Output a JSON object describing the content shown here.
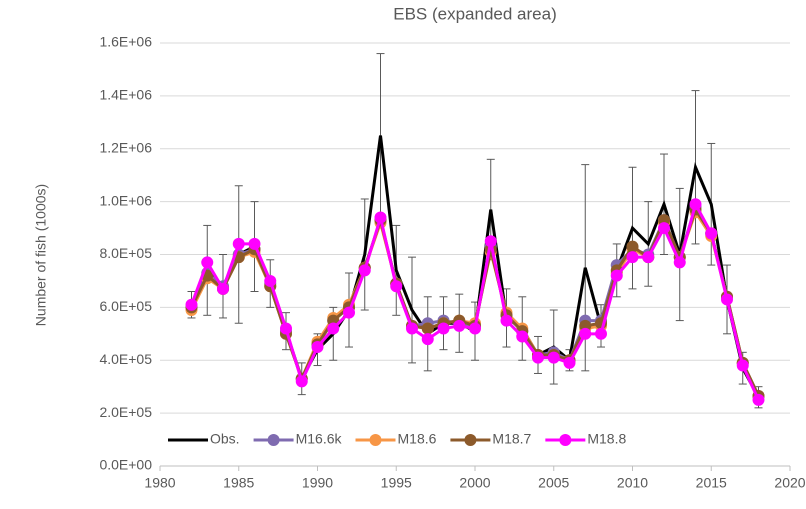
{
  "chart_data": {
    "type": "line",
    "title": "EBS (expanded area)",
    "y_label": "Number of fish (1000s)",
    "x": [
      1982,
      1983,
      1984,
      1985,
      1986,
      1987,
      1988,
      1989,
      1990,
      1991,
      1992,
      1993,
      1994,
      1995,
      1996,
      1997,
      1998,
      1999,
      2000,
      2001,
      2002,
      2003,
      2004,
      2005,
      2006,
      2007,
      2008,
      2009,
      2010,
      2011,
      2012,
      2013,
      2014,
      2015,
      2016,
      2017,
      2018
    ],
    "series": [
      {
        "name": "Obs.",
        "color": "#000000",
        "markers": false,
        "values": [
          610000,
          740000,
          680000,
          800000,
          830000,
          690000,
          510000,
          330000,
          440000,
          500000,
          590000,
          800000,
          1250000,
          740000,
          590000,
          500000,
          540000,
          540000,
          510000,
          970000,
          560000,
          520000,
          420000,
          450000,
          400000,
          750000,
          530000,
          740000,
          900000,
          840000,
          990000,
          800000,
          1130000,
          990000,
          630000,
          370000,
          260000
        ],
        "errors": [
          50000,
          170000,
          120000,
          260000,
          170000,
          90000,
          70000,
          60000,
          60000,
          100000,
          140000,
          210000,
          310000,
          170000,
          200000,
          140000,
          100000,
          110000,
          110000,
          190000,
          110000,
          120000,
          70000,
          140000,
          40000,
          390000,
          80000,
          100000,
          230000,
          160000,
          190000,
          250000,
          290000,
          230000,
          130000,
          60000,
          40000
        ]
      },
      {
        "name": "M16.6k",
        "color": "#7f6bb0",
        "markers": true,
        "values": [
          600000,
          730000,
          680000,
          800000,
          820000,
          690000,
          510000,
          330000,
          460000,
          550000,
          600000,
          750000,
          930000,
          690000,
          530000,
          540000,
          550000,
          540000,
          530000,
          830000,
          570000,
          510000,
          420000,
          430000,
          400000,
          550000,
          550000,
          760000,
          820000,
          800000,
          930000,
          790000,
          980000,
          880000,
          640000,
          390000,
          265000
        ]
      },
      {
        "name": "M18.6",
        "color": "#f79646",
        "markers": true,
        "values": [
          590000,
          710000,
          670000,
          790000,
          810000,
          680000,
          500000,
          330000,
          470000,
          560000,
          610000,
          750000,
          920000,
          690000,
          530000,
          520000,
          540000,
          550000,
          540000,
          810000,
          580000,
          520000,
          420000,
          420000,
          400000,
          520000,
          530000,
          730000,
          820000,
          790000,
          920000,
          790000,
          960000,
          870000,
          640000,
          390000,
          265000
        ]
      },
      {
        "name": "M18.7",
        "color": "#8c5a2b",
        "markers": true,
        "values": [
          600000,
          720000,
          670000,
          790000,
          820000,
          680000,
          500000,
          330000,
          460000,
          550000,
          600000,
          750000,
          930000,
          690000,
          530000,
          520000,
          540000,
          550000,
          530000,
          820000,
          570000,
          510000,
          420000,
          420000,
          400000,
          530000,
          540000,
          740000,
          830000,
          790000,
          930000,
          790000,
          970000,
          880000,
          640000,
          390000,
          265000
        ]
      },
      {
        "name": "M18.8",
        "color": "#ff00ff",
        "markers": true,
        "values": [
          610000,
          770000,
          670000,
          840000,
          840000,
          700000,
          520000,
          320000,
          450000,
          520000,
          580000,
          740000,
          940000,
          680000,
          520000,
          480000,
          520000,
          530000,
          520000,
          850000,
          550000,
          490000,
          410000,
          410000,
          390000,
          500000,
          500000,
          720000,
          790000,
          790000,
          900000,
          770000,
          990000,
          880000,
          630000,
          380000,
          250000
        ]
      }
    ],
    "xlim": [
      1980,
      2020
    ],
    "xticks": [
      1980,
      1985,
      1990,
      1995,
      2000,
      2005,
      2010,
      2015,
      2020
    ],
    "ylim": [
      0,
      1600000
    ],
    "yticks": [
      {
        "value": 0,
        "label": "0.0E+00"
      },
      {
        "value": 200000,
        "label": "2.0E+05"
      },
      {
        "value": 400000,
        "label": "4.0E+05"
      },
      {
        "value": 600000,
        "label": "6.0E+05"
      },
      {
        "value": 800000,
        "label": "8.0E+05"
      },
      {
        "value": 1000000,
        "label": "1.0E+06"
      },
      {
        "value": 1200000,
        "label": "1.2E+06"
      },
      {
        "value": 1400000,
        "label": "1.4E+06"
      },
      {
        "value": 1600000,
        "label": "1.6E+06"
      }
    ],
    "grid": true,
    "legend": "bottom"
  }
}
